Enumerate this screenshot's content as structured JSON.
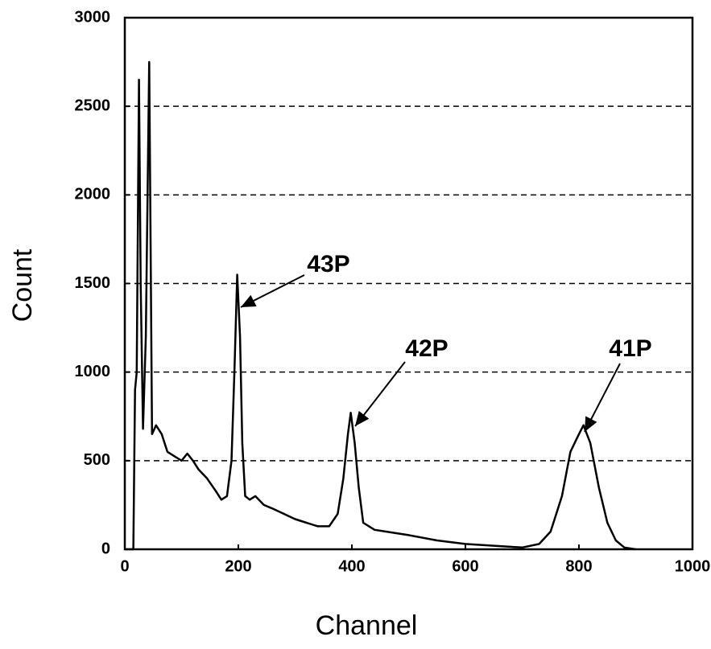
{
  "chart_data": {
    "type": "line",
    "xlabel": "Channel",
    "ylabel": "Count",
    "x": [
      0,
      15,
      18,
      21,
      25,
      28,
      32,
      37,
      43,
      46,
      48,
      55,
      65,
      75,
      90,
      100,
      110,
      120,
      130,
      145,
      160,
      170,
      180,
      188,
      193,
      198,
      203,
      207,
      212,
      220,
      230,
      245,
      260,
      280,
      300,
      320,
      340,
      360,
      375,
      385,
      393,
      398,
      405,
      412,
      420,
      440,
      460,
      500,
      550,
      600,
      650,
      700,
      730,
      750,
      770,
      785,
      800,
      808,
      820,
      835,
      850,
      865,
      880,
      900
    ],
    "values": [
      0,
      0,
      900,
      1000,
      2650,
      1500,
      680,
      1200,
      2750,
      1500,
      650,
      700,
      650,
      550,
      520,
      500,
      540,
      500,
      450,
      400,
      330,
      280,
      300,
      500,
      1000,
      1550,
      1200,
      600,
      300,
      280,
      300,
      250,
      230,
      200,
      170,
      150,
      130,
      130,
      200,
      400,
      650,
      770,
      600,
      350,
      150,
      110,
      100,
      80,
      50,
      30,
      20,
      10,
      30,
      100,
      300,
      550,
      650,
      700,
      600,
      350,
      150,
      50,
      10,
      0
    ],
    "color": "#000000",
    "xlim": [
      0,
      1000
    ],
    "xticks": [
      0,
      200,
      400,
      600,
      800,
      1000
    ],
    "ylim": [
      0,
      3000
    ],
    "yticks": [
      0,
      500,
      1000,
      1500,
      2000,
      2500,
      3000
    ],
    "grid": true,
    "annotations": [
      "43P",
      "42P",
      "41P"
    ]
  }
}
